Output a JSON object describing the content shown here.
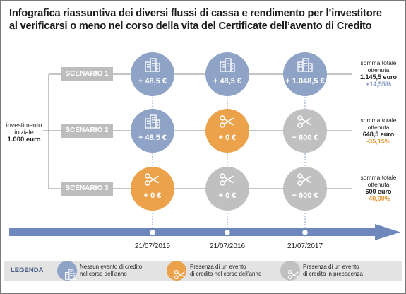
{
  "title_line1": "Infografica riassuntiva dei diversi flussi di cassa e rendimento per l’investitore",
  "title_line2": "al verificarsi o meno nel corso della vita del Certificate dell’avento di Credito",
  "investment": {
    "line1": "investimento",
    "line2": "iniziale",
    "amount": "1.000 euro"
  },
  "scenarios": [
    {
      "label": "SCENARIO 1",
      "cells": [
        {
          "type": "blue",
          "icon": "building-icon",
          "value": "+ 48,5 €"
        },
        {
          "type": "blue",
          "icon": "building-icon",
          "value": "+ 48,5 €"
        },
        {
          "type": "blue",
          "icon": "building-icon",
          "value": "+ 1.048,5 €"
        }
      ],
      "result": {
        "line1": "somma totale",
        "line2": "ottenuta",
        "amount": "1.145,5 euro",
        "pct": "+14,55%"
      }
    },
    {
      "label": "SCENARIO 2",
      "cells": [
        {
          "type": "blue",
          "icon": "building-icon",
          "value": "+ 48,5 €"
        },
        {
          "type": "orange",
          "icon": "scissors-icon",
          "value": "+ 0 €"
        },
        {
          "type": "grey",
          "icon": "scissors-icon",
          "value": "+ 600 €"
        }
      ],
      "result": {
        "line1": "somma totale",
        "line2": "ottenuta",
        "amount": "648,5 euro",
        "pct": "-35,15%"
      }
    },
    {
      "label": "SCENARIO 3",
      "cells": [
        {
          "type": "orange",
          "icon": "scissors-icon",
          "value": "+ 0 €"
        },
        {
          "type": "grey",
          "icon": "scissors-icon",
          "value": "+ 0 €"
        },
        {
          "type": "grey",
          "icon": "scissors-icon",
          "value": "+ 600 €"
        }
      ],
      "result": {
        "line1": "somma totale",
        "line2": "ottenuta",
        "amount": "600 euro",
        "pct": "-40,00%"
      }
    }
  ],
  "dates": [
    "21/07/2015",
    "21/07/2016",
    "21/07/2017"
  ],
  "legend": {
    "title": "LEGENDA",
    "items": [
      {
        "type": "blue",
        "icon": "building-icon",
        "line1": "Nessun evento di credito",
        "line2": "nel corso dell’anno"
      },
      {
        "type": "orange",
        "icon": "scissors-icon",
        "line1": "Presenza di un evento",
        "line2": "di credito nel corso dell’anno"
      },
      {
        "type": "grey",
        "icon": "scissors-icon",
        "line1": "Presenza di un evento",
        "line2": "di credito in precedenza"
      }
    ]
  },
  "colors": {
    "blue": "#8fa3c6",
    "orange": "#eba24a",
    "grey": "#c0c0c0",
    "scenario_label": "#bdbdbd",
    "positive": "#7f93c2",
    "negative": "#e69a3c",
    "timeline": "#6f88bb"
  }
}
